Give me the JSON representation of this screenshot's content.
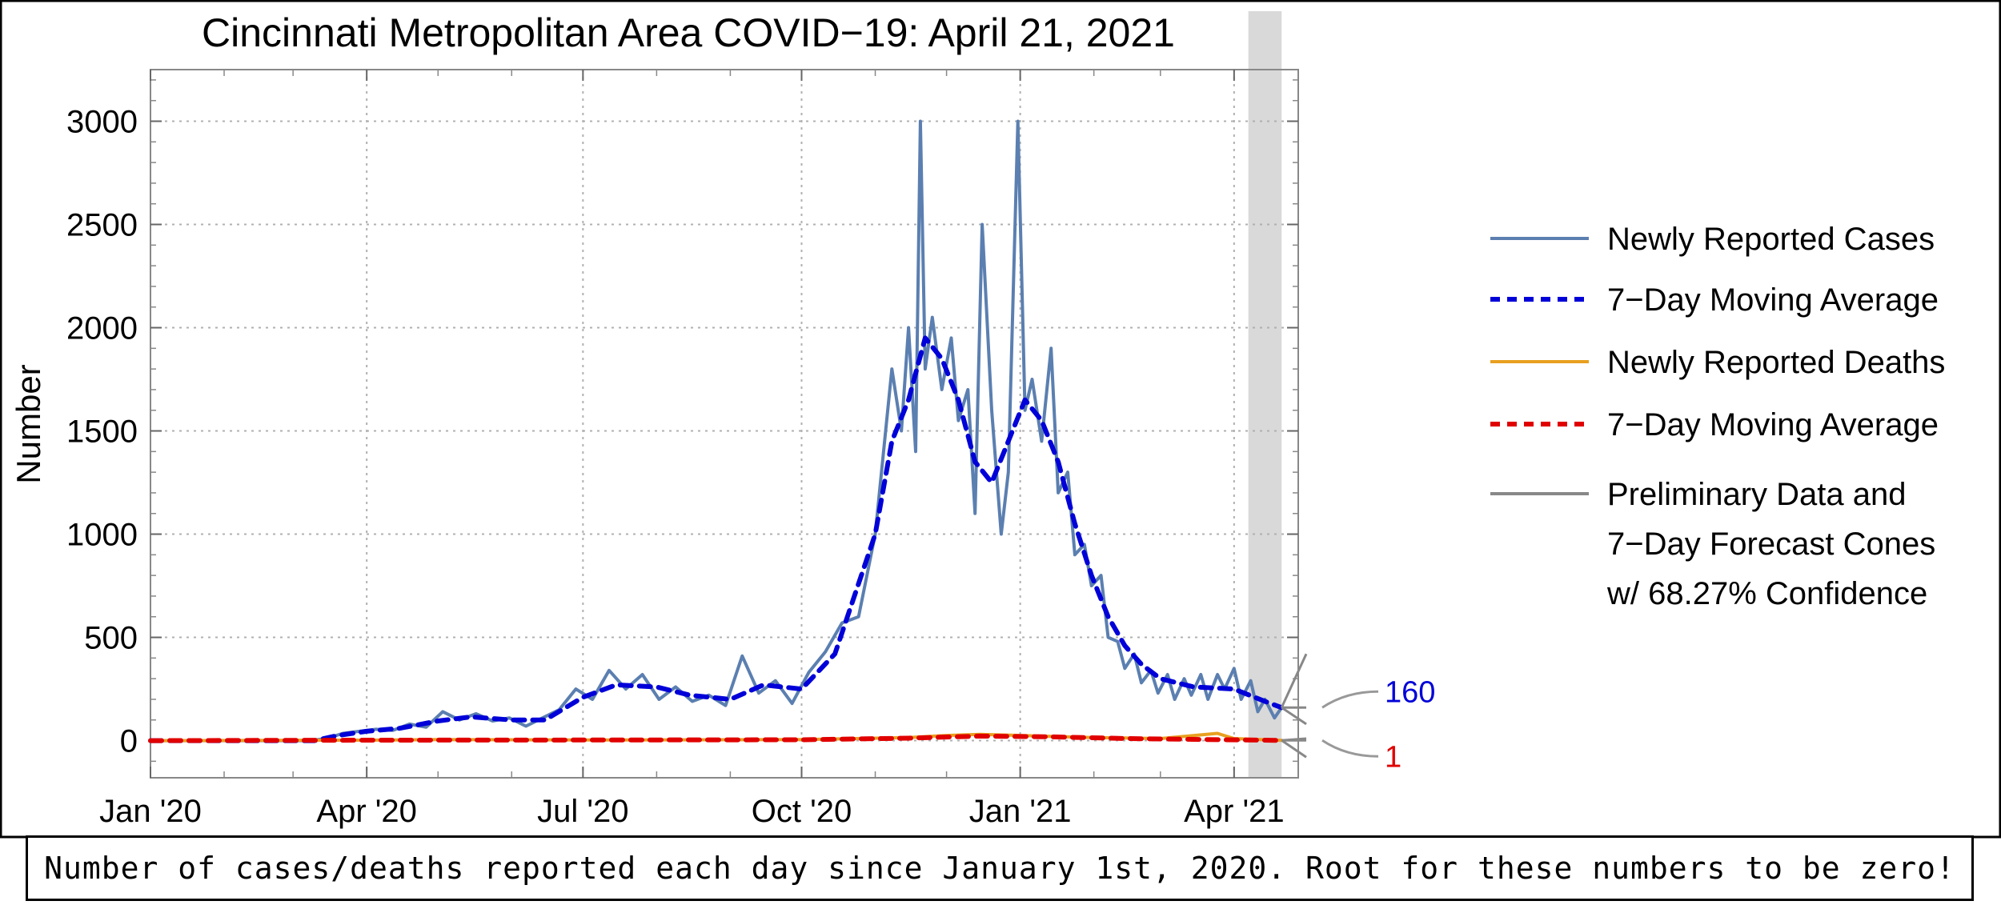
{
  "chart_data": {
    "type": "line",
    "title": "Cincinnati Metropolitan Area COVID−19: April 21, 2021",
    "xlabel": "",
    "ylabel": "Number",
    "x_range": [
      "2020-01-01",
      "2021-04-28"
    ],
    "ylim": [
      -180,
      3250
    ],
    "y_ticks": [
      0,
      500,
      1000,
      1500,
      2000,
      2500,
      3000
    ],
    "y_tick_labels": [
      "0",
      "500",
      "1000",
      "1500",
      "2000",
      "2500",
      "3000"
    ],
    "x_ticks": [
      "2020-01-01",
      "2020-04-01",
      "2020-07-01",
      "2020-10-01",
      "2021-01-01",
      "2021-04-01"
    ],
    "x_tick_labels": [
      "Jan '20",
      "Apr '20",
      "Jul '20",
      "Oct '20",
      "Jan '21",
      "Apr '21"
    ],
    "grid": true,
    "legend_position": "right",
    "shaded_period": [
      "2021-04-07",
      "2021-04-21"
    ],
    "colors": {
      "cases": "#5b7fb0",
      "cases_avg": "#0000d8",
      "deaths": "#e8a020",
      "deaths_avg": "#e00000",
      "preliminary": "#888888",
      "shade": "#d9d9d9"
    },
    "series": [
      {
        "name": "Newly Reported Cases",
        "style": "solid",
        "points": [
          [
            "2020-01-01",
            0
          ],
          [
            "2020-03-08",
            0
          ],
          [
            "2020-03-15",
            10
          ],
          [
            "2020-03-22",
            35
          ],
          [
            "2020-03-29",
            45
          ],
          [
            "2020-04-05",
            55
          ],
          [
            "2020-04-12",
            50
          ],
          [
            "2020-04-19",
            80
          ],
          [
            "2020-04-26",
            65
          ],
          [
            "2020-05-03",
            140
          ],
          [
            "2020-05-10",
            100
          ],
          [
            "2020-05-17",
            130
          ],
          [
            "2020-05-24",
            95
          ],
          [
            "2020-05-31",
            110
          ],
          [
            "2020-06-07",
            70
          ],
          [
            "2020-06-14",
            110
          ],
          [
            "2020-06-21",
            150
          ],
          [
            "2020-06-28",
            250
          ],
          [
            "2020-07-05",
            200
          ],
          [
            "2020-07-12",
            340
          ],
          [
            "2020-07-19",
            250
          ],
          [
            "2020-07-26",
            320
          ],
          [
            "2020-08-02",
            200
          ],
          [
            "2020-08-09",
            260
          ],
          [
            "2020-08-16",
            190
          ],
          [
            "2020-08-23",
            220
          ],
          [
            "2020-08-30",
            170
          ],
          [
            "2020-09-06",
            410
          ],
          [
            "2020-09-13",
            230
          ],
          [
            "2020-09-20",
            290
          ],
          [
            "2020-09-27",
            180
          ],
          [
            "2020-10-04",
            330
          ],
          [
            "2020-10-11",
            430
          ],
          [
            "2020-10-18",
            570
          ],
          [
            "2020-10-25",
            600
          ],
          [
            "2020-11-01",
            1000
          ],
          [
            "2020-11-08",
            1800
          ],
          [
            "2020-11-12",
            1500
          ],
          [
            "2020-11-15",
            2000
          ],
          [
            "2020-11-18",
            1400
          ],
          [
            "2020-11-20",
            3000
          ],
          [
            "2020-11-22",
            1800
          ],
          [
            "2020-11-25",
            2050
          ],
          [
            "2020-11-29",
            1700
          ],
          [
            "2020-12-03",
            1950
          ],
          [
            "2020-12-06",
            1550
          ],
          [
            "2020-12-10",
            1700
          ],
          [
            "2020-12-13",
            1100
          ],
          [
            "2020-12-16",
            2500
          ],
          [
            "2020-12-20",
            1600
          ],
          [
            "2020-12-24",
            1000
          ],
          [
            "2020-12-27",
            1300
          ],
          [
            "2020-12-31",
            3000
          ],
          [
            "2021-01-03",
            1600
          ],
          [
            "2021-01-06",
            1750
          ],
          [
            "2021-01-10",
            1450
          ],
          [
            "2021-01-14",
            1900
          ],
          [
            "2021-01-17",
            1200
          ],
          [
            "2021-01-21",
            1300
          ],
          [
            "2021-01-24",
            900
          ],
          [
            "2021-01-28",
            950
          ],
          [
            "2021-01-31",
            750
          ],
          [
            "2021-02-04",
            800
          ],
          [
            "2021-02-07",
            500
          ],
          [
            "2021-02-11",
            480
          ],
          [
            "2021-02-14",
            350
          ],
          [
            "2021-02-18",
            420
          ],
          [
            "2021-02-21",
            280
          ],
          [
            "2021-02-25",
            340
          ],
          [
            "2021-02-28",
            230
          ],
          [
            "2021-03-04",
            320
          ],
          [
            "2021-03-07",
            200
          ],
          [
            "2021-03-11",
            300
          ],
          [
            "2021-03-14",
            220
          ],
          [
            "2021-03-18",
            320
          ],
          [
            "2021-03-21",
            200
          ],
          [
            "2021-03-25",
            320
          ],
          [
            "2021-03-28",
            250
          ],
          [
            "2021-04-01",
            350
          ],
          [
            "2021-04-04",
            200
          ],
          [
            "2021-04-08",
            290
          ],
          [
            "2021-04-11",
            140
          ],
          [
            "2021-04-14",
            200
          ],
          [
            "2021-04-18",
            110
          ],
          [
            "2021-04-21",
            160
          ]
        ]
      },
      {
        "name": "7−Day Moving Average",
        "style": "dashed",
        "points": [
          [
            "2020-01-01",
            0
          ],
          [
            "2020-03-10",
            0
          ],
          [
            "2020-03-20",
            25
          ],
          [
            "2020-04-01",
            45
          ],
          [
            "2020-04-15",
            60
          ],
          [
            "2020-05-01",
            95
          ],
          [
            "2020-05-15",
            115
          ],
          [
            "2020-06-01",
            100
          ],
          [
            "2020-06-15",
            100
          ],
          [
            "2020-07-01",
            210
          ],
          [
            "2020-07-15",
            270
          ],
          [
            "2020-08-01",
            260
          ],
          [
            "2020-08-15",
            220
          ],
          [
            "2020-09-01",
            200
          ],
          [
            "2020-09-15",
            270
          ],
          [
            "2020-10-01",
            250
          ],
          [
            "2020-10-15",
            420
          ],
          [
            "2020-11-01",
            1000
          ],
          [
            "2020-11-08",
            1450
          ],
          [
            "2020-11-15",
            1650
          ],
          [
            "2020-11-22",
            1950
          ],
          [
            "2020-11-29",
            1850
          ],
          [
            "2020-12-06",
            1650
          ],
          [
            "2020-12-13",
            1350
          ],
          [
            "2020-12-20",
            1250
          ],
          [
            "2020-12-27",
            1450
          ],
          [
            "2021-01-03",
            1650
          ],
          [
            "2021-01-10",
            1550
          ],
          [
            "2021-01-17",
            1350
          ],
          [
            "2021-01-24",
            1050
          ],
          [
            "2021-01-31",
            800
          ],
          [
            "2021-02-07",
            600
          ],
          [
            "2021-02-14",
            460
          ],
          [
            "2021-02-21",
            370
          ],
          [
            "2021-03-01",
            300
          ],
          [
            "2021-03-15",
            260
          ],
          [
            "2021-04-01",
            250
          ],
          [
            "2021-04-14",
            190
          ],
          [
            "2021-04-21",
            160
          ]
        ]
      },
      {
        "name": "Newly Reported Deaths",
        "style": "solid",
        "points": [
          [
            "2020-01-01",
            0
          ],
          [
            "2020-04-01",
            2
          ],
          [
            "2020-05-01",
            5
          ],
          [
            "2020-07-01",
            3
          ],
          [
            "2020-10-01",
            5
          ],
          [
            "2020-11-15",
            15
          ],
          [
            "2020-12-01",
            25
          ],
          [
            "2020-12-15",
            30
          ],
          [
            "2021-01-01",
            25
          ],
          [
            "2021-01-15",
            20
          ],
          [
            "2021-02-01",
            15
          ],
          [
            "2021-03-01",
            10
          ],
          [
            "2021-03-25",
            35
          ],
          [
            "2021-04-01",
            10
          ],
          [
            "2021-04-21",
            1
          ]
        ]
      },
      {
        "name": "7−Day Moving Average",
        "style": "dashed",
        "points": [
          [
            "2020-01-01",
            0
          ],
          [
            "2020-04-01",
            2
          ],
          [
            "2020-07-01",
            3
          ],
          [
            "2020-10-01",
            4
          ],
          [
            "2020-11-15",
            12
          ],
          [
            "2020-12-15",
            22
          ],
          [
            "2021-01-15",
            18
          ],
          [
            "2021-02-15",
            10
          ],
          [
            "2021-03-15",
            6
          ],
          [
            "2021-04-21",
            1
          ]
        ]
      }
    ],
    "forecast": {
      "legend_lines": [
        "Preliminary Data and",
        "7−Day Forecast Cones",
        "w/ 68.27% Confidence"
      ],
      "cases_cone": {
        "center": 160,
        "upper": 420,
        "lower": 80
      },
      "deaths_cone": {
        "center": 1,
        "upper": 10,
        "lower": -80
      }
    },
    "annotations": [
      {
        "label": "160",
        "value": 160,
        "color": "#0000d8"
      },
      {
        "label": "1",
        "value": 1,
        "color": "#e00000"
      }
    ]
  },
  "caption": "Number of cases/deaths reported each day since January 1st, 2020. Root for these numbers to be zero!"
}
